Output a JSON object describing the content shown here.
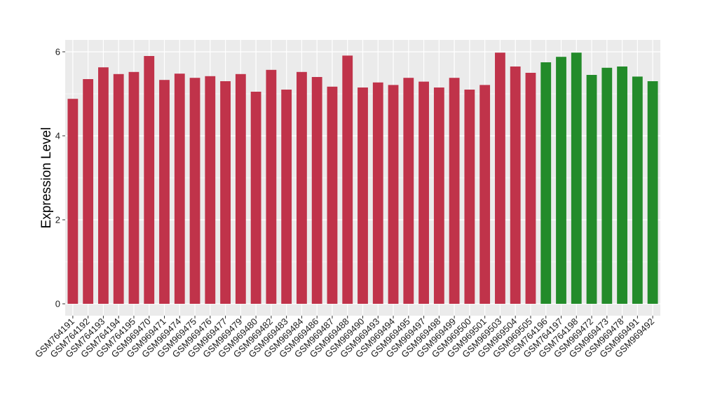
{
  "chart_data": {
    "type": "bar",
    "title": "",
    "xlabel": "",
    "ylabel": "Expression Level",
    "ylim": [
      0,
      6.25
    ],
    "yticks": [
      0,
      2,
      4,
      6
    ],
    "grid": true,
    "legend": "none",
    "colors": {
      "group_a": "#c0334a",
      "group_b": "#238b2a",
      "panel": "#ebebeb",
      "grid": "#ffffff"
    },
    "categories": [
      "GSM764191",
      "GSM764192",
      "GSM764193",
      "GSM764194",
      "GSM764195",
      "GSM969470",
      "GSM969471",
      "GSM969474",
      "GSM969475",
      "GSM969476",
      "GSM969477",
      "GSM969479",
      "GSM969480",
      "GSM969482",
      "GSM969483",
      "GSM969484",
      "GSM969486",
      "GSM969487",
      "GSM969488",
      "GSM969490",
      "GSM969493",
      "GSM969494",
      "GSM969495",
      "GSM969497",
      "GSM969498",
      "GSM969499",
      "GSM969500",
      "GSM969501",
      "GSM969503",
      "GSM969504",
      "GSM969505",
      "GSM764196",
      "GSM764197",
      "GSM764198",
      "GSM969472",
      "GSM969473",
      "GSM969478",
      "GSM969491",
      "GSM969492"
    ],
    "values": [
      4.88,
      5.35,
      5.63,
      5.47,
      5.52,
      5.9,
      5.33,
      5.48,
      5.38,
      5.42,
      5.3,
      5.47,
      5.05,
      5.57,
      5.1,
      5.52,
      5.4,
      5.17,
      5.91,
      5.15,
      5.27,
      5.21,
      5.38,
      5.29,
      5.15,
      5.38,
      5.1,
      5.21,
      5.98,
      5.65,
      5.5,
      5.75,
      5.88,
      5.98,
      5.45,
      5.62,
      5.65,
      5.41,
      5.3
    ],
    "groups": [
      "a",
      "a",
      "a",
      "a",
      "a",
      "a",
      "a",
      "a",
      "a",
      "a",
      "a",
      "a",
      "a",
      "a",
      "a",
      "a",
      "a",
      "a",
      "a",
      "a",
      "a",
      "a",
      "a",
      "a",
      "a",
      "a",
      "a",
      "a",
      "a",
      "a",
      "a",
      "b",
      "b",
      "b",
      "b",
      "b",
      "b",
      "b",
      "b"
    ]
  }
}
